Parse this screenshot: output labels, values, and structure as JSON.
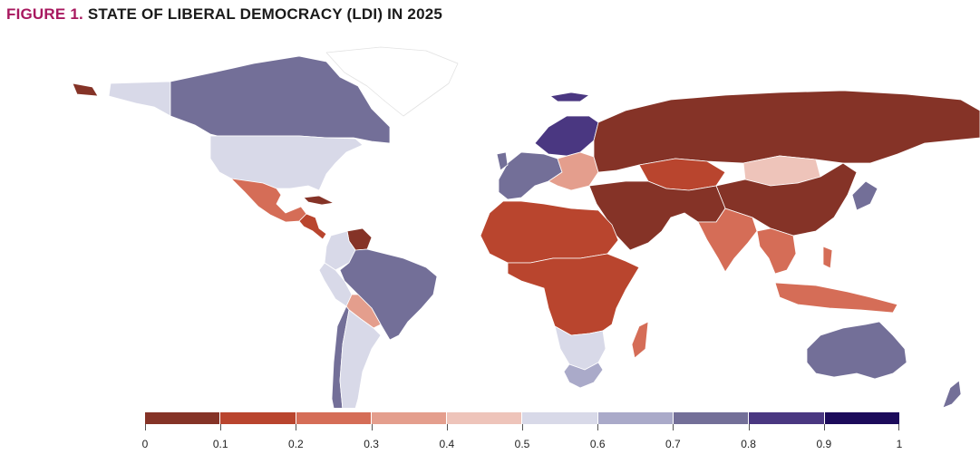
{
  "title": {
    "number": "FIGURE 1.",
    "text": "STATE OF LIBERAL DEMOCRACY (LDI) IN 2025"
  },
  "legend": {
    "bins": [
      {
        "range": "0-0.1",
        "color": "#853327"
      },
      {
        "range": "0.1-0.2",
        "color": "#b9452e"
      },
      {
        "range": "0.2-0.3",
        "color": "#d56d57"
      },
      {
        "range": "0.3-0.4",
        "color": "#e49e8d"
      },
      {
        "range": "0.4-0.5",
        "color": "#eec4ba"
      },
      {
        "range": "0.5-0.6",
        "color": "#d8d9e8"
      },
      {
        "range": "0.6-0.7",
        "color": "#aaaac9"
      },
      {
        "range": "0.7-0.8",
        "color": "#736f98"
      },
      {
        "range": "0.8-0.9",
        "color": "#4a3781"
      },
      {
        "range": "0.9-1",
        "color": "#1c0b5b"
      }
    ],
    "labels": [
      "0",
      "0.1",
      "0.2",
      "0.3",
      "0.4",
      "0.5",
      "0.6",
      "0.7",
      "0.8",
      "0.9",
      "1"
    ]
  },
  "regions": [
    {
      "name": "greenland",
      "bin": null
    },
    {
      "name": "canada",
      "bin": 7
    },
    {
      "name": "alaska",
      "bin": 5
    },
    {
      "name": "usa",
      "bin": 5
    },
    {
      "name": "mexico",
      "bin": 2
    },
    {
      "name": "central-america",
      "bin": 1
    },
    {
      "name": "cuba",
      "bin": 0
    },
    {
      "name": "venezuela",
      "bin": 0
    },
    {
      "name": "colombia",
      "bin": 5
    },
    {
      "name": "brazil",
      "bin": 7
    },
    {
      "name": "peru",
      "bin": 5
    },
    {
      "name": "bolivia",
      "bin": 3
    },
    {
      "name": "chile",
      "bin": 7
    },
    {
      "name": "argentina",
      "bin": 5
    },
    {
      "name": "scandinavia",
      "bin": 8
    },
    {
      "name": "western-europe",
      "bin": 7
    },
    {
      "name": "eastern-europe",
      "bin": 3
    },
    {
      "name": "russia",
      "bin": 0
    },
    {
      "name": "kazakhstan",
      "bin": 1
    },
    {
      "name": "mongolia",
      "bin": 4
    },
    {
      "name": "china",
      "bin": 0
    },
    {
      "name": "india",
      "bin": 2
    },
    {
      "name": "middle-east",
      "bin": 0
    },
    {
      "name": "north-africa",
      "bin": 1
    },
    {
      "name": "central-africa",
      "bin": 1
    },
    {
      "name": "southern-africa",
      "bin": 5
    },
    {
      "name": "south-africa",
      "bin": 6
    },
    {
      "name": "madagascar",
      "bin": 2
    },
    {
      "name": "southeast-asia",
      "bin": 2
    },
    {
      "name": "indonesia",
      "bin": 2
    },
    {
      "name": "japan",
      "bin": 7
    },
    {
      "name": "australia",
      "bin": 7
    },
    {
      "name": "new-zealand",
      "bin": 7
    }
  ]
}
